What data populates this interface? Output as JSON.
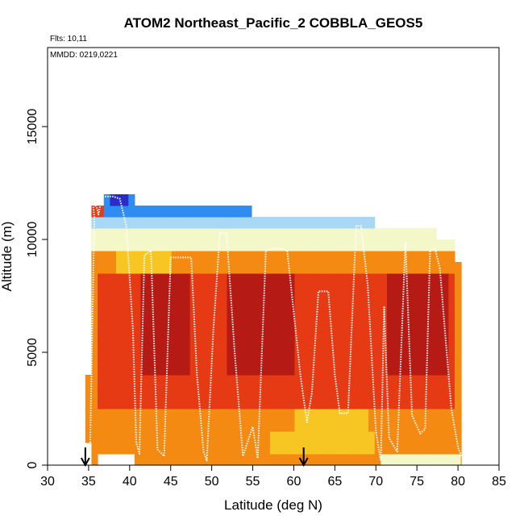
{
  "chart_data": {
    "type": "heatmap",
    "title": "ATOM2 Northeast_Pacific_2 COBBLA_GEOS5",
    "flights_label": "Flts: 10,11",
    "dates_label": "MMDD: 0219,0221",
    "xlabel": "Latitude (deg N)",
    "ylabel": "Altitude (m)",
    "xlim": [
      30,
      85
    ],
    "ylim": [
      0,
      18500
    ],
    "x_ticks": [
      30,
      35,
      40,
      45,
      50,
      55,
      60,
      65,
      70,
      75,
      80,
      85
    ],
    "x_tick_labels": [
      "30",
      "35",
      "40",
      "45",
      "50",
      "55",
      "60",
      "65",
      "70",
      "75",
      "80",
      "85"
    ],
    "y_ticks": [
      0,
      5000,
      10000,
      15000
    ],
    "y_tick_labels": [
      "0",
      "5000",
      "10000",
      "15000"
    ],
    "grid": false,
    "colors": {
      "very_low": "#2a2cc8",
      "low": "#2f8cf0",
      "low_mid": "#a8d8f6",
      "mid": "#f4f7c8",
      "mid_high": "#f8c622",
      "high": "#f58a12",
      "very_high": "#e63a14",
      "max": "#b51a14",
      "track": "#ffffff"
    },
    "arrows_latitude": [
      34.6,
      61.2
    ],
    "flight_track": {
      "lat": [
        35.2,
        35.5,
        35.7,
        35.5,
        36.0,
        36.2,
        36.6,
        37.0,
        38.0,
        38.8,
        39.6,
        40.4,
        40.8,
        41.2,
        41.8,
        42.6,
        43.4,
        44.2,
        45.0,
        45.8,
        46.2,
        47.5,
        48.2,
        49.0,
        49.4,
        50.2,
        51.0,
        51.8,
        52.8,
        53.8,
        55.0,
        55.6,
        56.6,
        57.6,
        58.6,
        59.2,
        60.8,
        61.6,
        62.2,
        63.0,
        64.2,
        65.0,
        65.6,
        66.6,
        67.6,
        68.2,
        69.0,
        70.0,
        70.4,
        70.6,
        71.0,
        71.6,
        72.6,
        73.6,
        74.4,
        75.4,
        76.0,
        76.6,
        77.2,
        77.8,
        78.4,
        79.2,
        80.0,
        80.4
      ],
      "alt_m": [
        1000,
        7000,
        11000,
        11700,
        11400,
        11100,
        11900,
        11900,
        11900,
        11800,
        10600,
        6000,
        1000,
        500,
        9300,
        9500,
        700,
        400,
        9200,
        9200,
        9200,
        9200,
        4000,
        600,
        200,
        6000,
        10300,
        10300,
        5000,
        400,
        1700,
        300,
        9500,
        9600,
        9600,
        9500,
        4000,
        1900,
        3200,
        7700,
        7700,
        4000,
        2300,
        2300,
        10600,
        10600,
        8000,
        1500,
        600,
        200,
        7000,
        1200,
        600,
        9900,
        2200,
        1400,
        1600,
        9500,
        9600,
        8700,
        6000,
        2500,
        800,
        400
      ]
    },
    "colorscale_levels": [
      "very_low",
      "low",
      "low_mid",
      "mid",
      "mid_high",
      "high",
      "very_high",
      "max"
    ]
  }
}
